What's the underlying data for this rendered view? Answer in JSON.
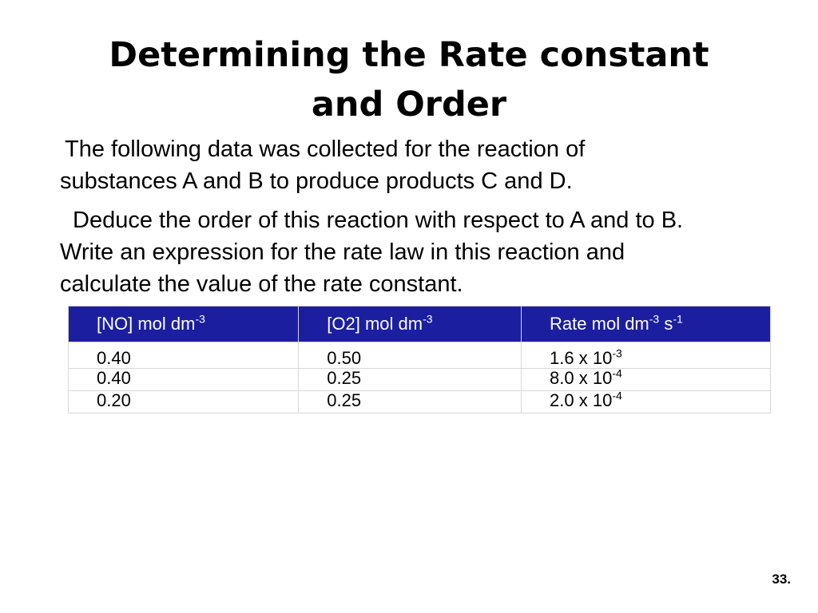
{
  "slide": {
    "title_line_1": "Determining the Rate constant",
    "title_line_2": "and Order",
    "paragraph_1": {
      "line_1": "The following data was collected for the reaction of",
      "line_2": "substances A and B to produce products C and D."
    },
    "paragraph_2": {
      "line_1": "Deduce the order of this reaction with respect to A and to B.",
      "line_2": "Write an expression for the rate law in this reaction and",
      "line_3": "calculate the value of the rate constant."
    },
    "page_number": "33."
  },
  "table": {
    "header_color": "#1c1ea0",
    "headers": [
      {
        "text": "[NO]  mol dm",
        "sup": "-3",
        "text_2": "",
        "sup_2": ""
      },
      {
        "text": "[O2] mol dm",
        "sup": "-3",
        "text_2": "",
        "sup_2": ""
      },
      {
        "text": "Rate mol dm",
        "sup": "-3",
        "text_2": " s",
        "sup_2": "-1"
      }
    ],
    "rows": [
      {
        "no": "0.40",
        "o2": "0.50",
        "rate_base": "1.6  x 10",
        "rate_exp": "-3"
      },
      {
        "no": "0.40",
        "o2": "0.25",
        "rate_base": "8.0 x 10",
        "rate_exp": "-4"
      },
      {
        "no": "0.20",
        "o2": "0.25",
        "rate_base": "2.0 x 10",
        "rate_exp": "-4"
      }
    ]
  }
}
